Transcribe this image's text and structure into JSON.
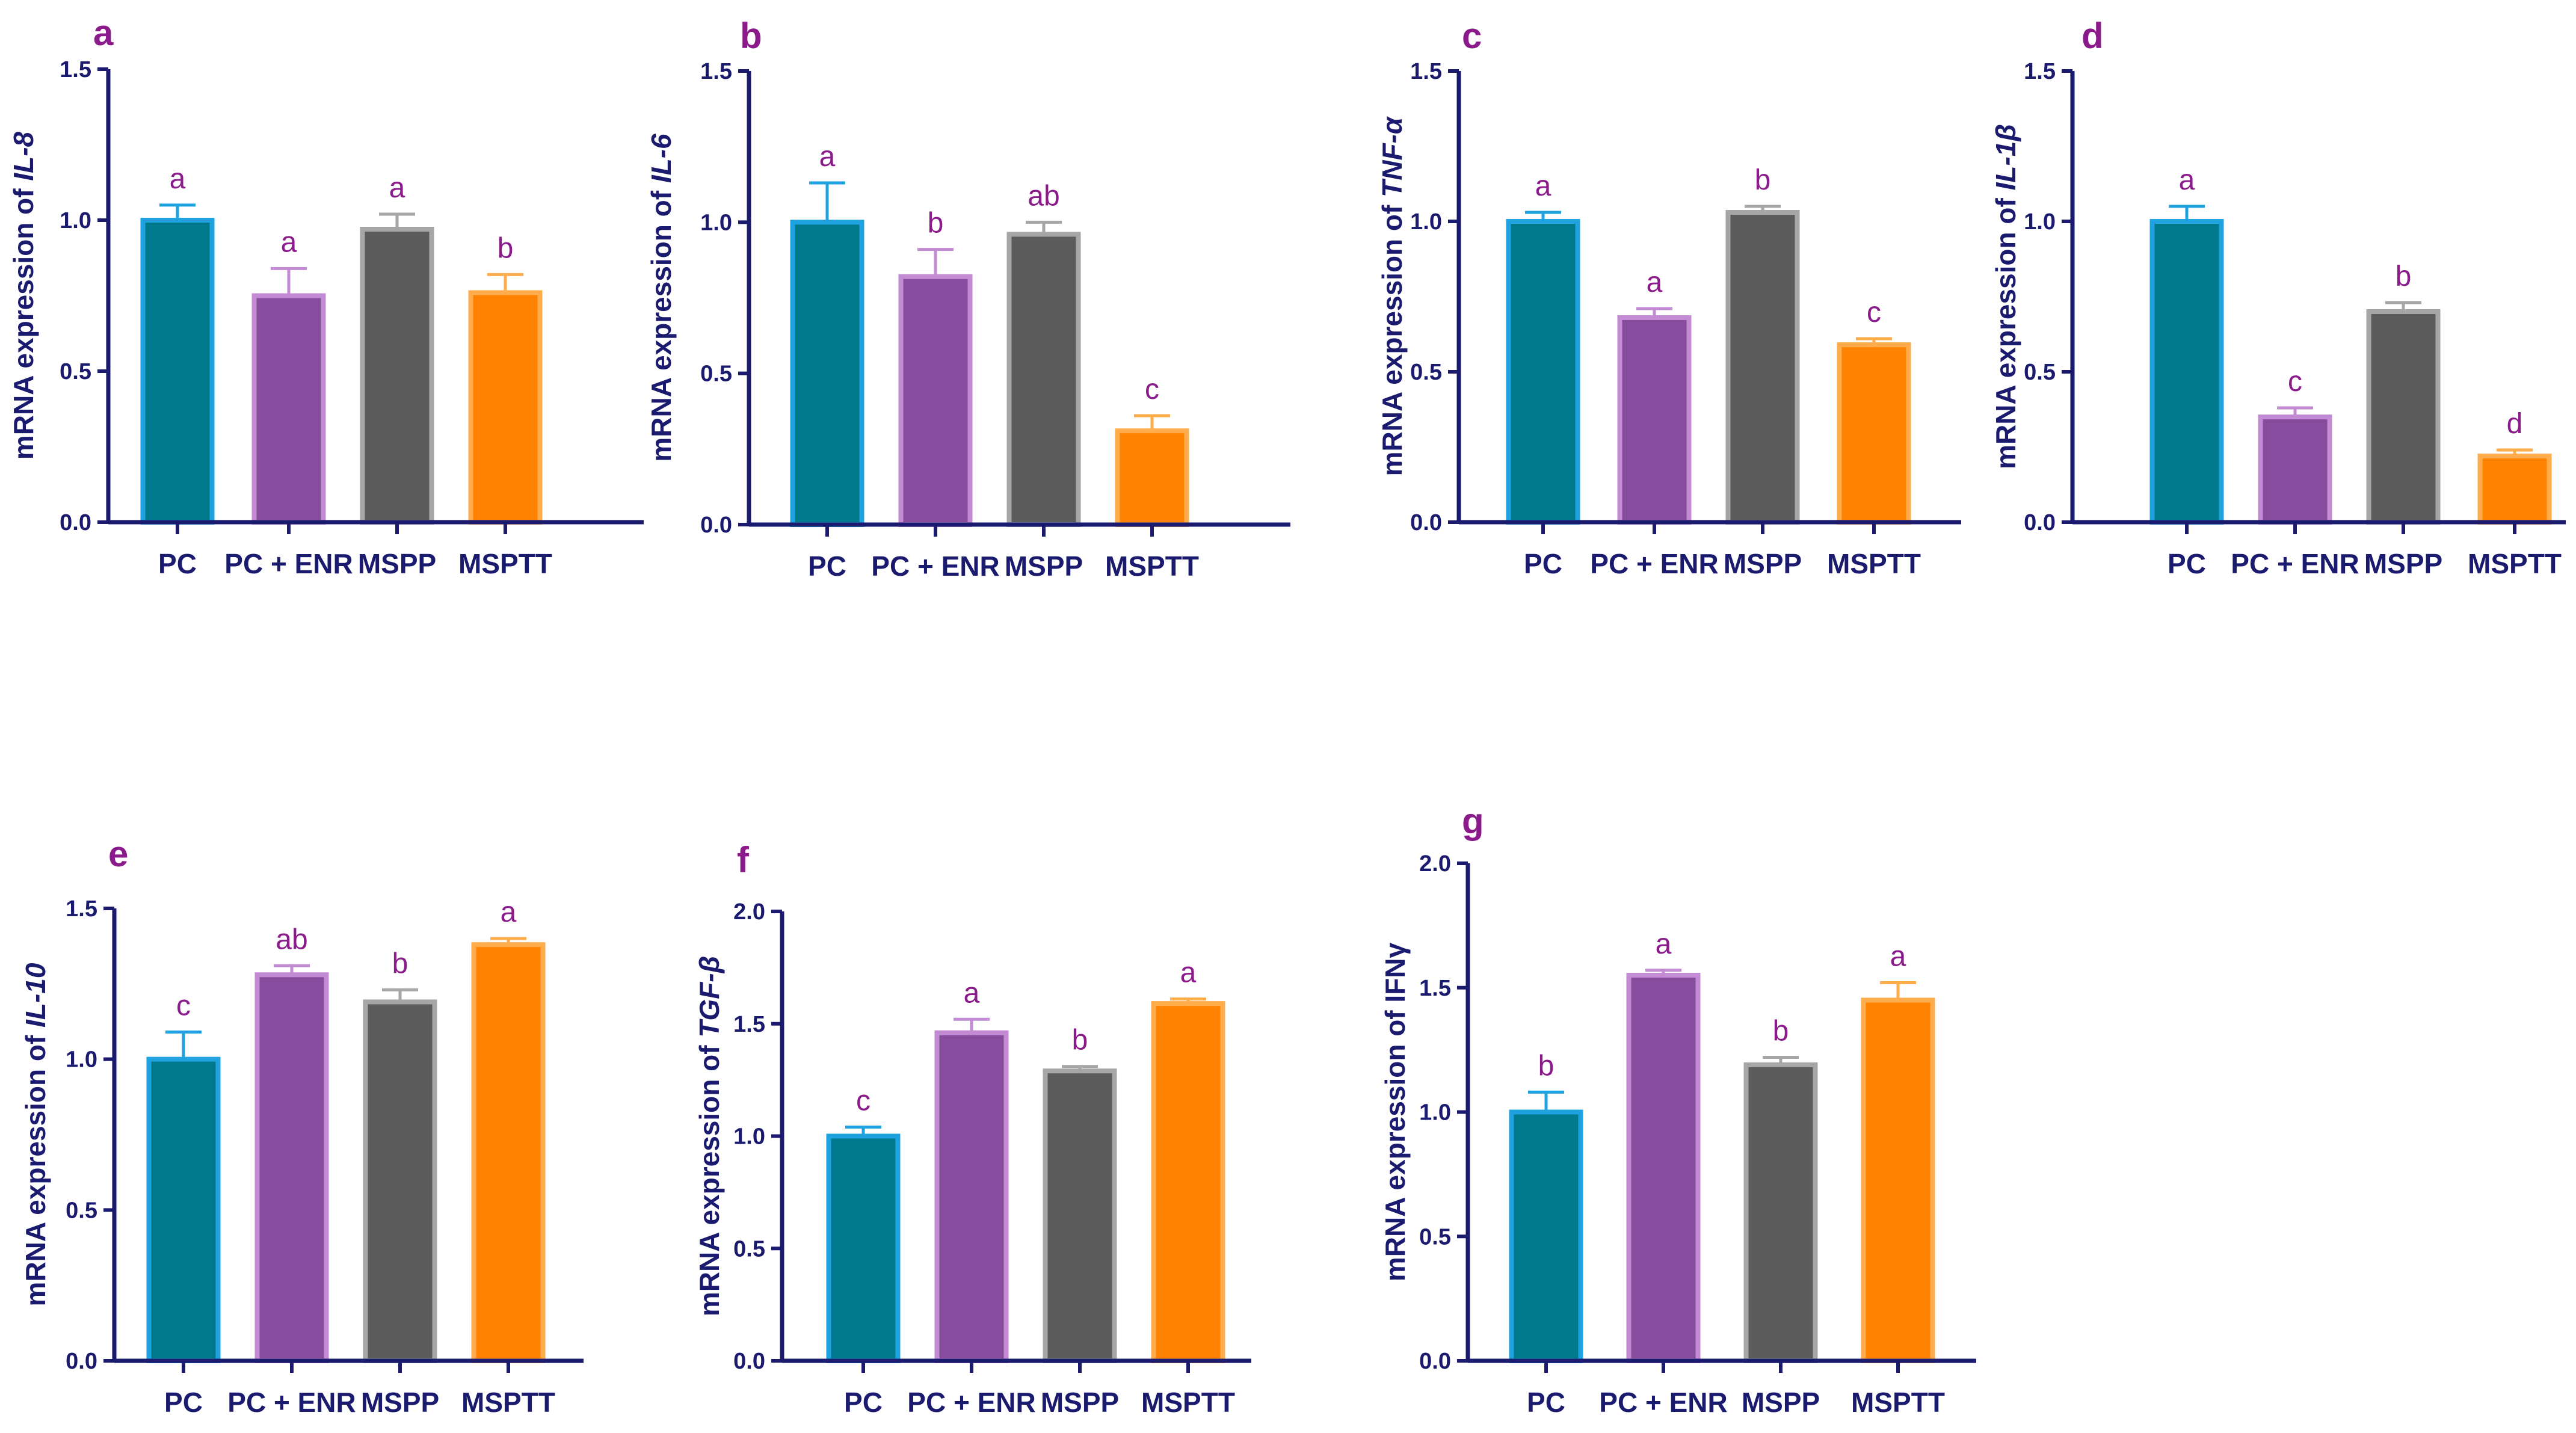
{
  "colors": {
    "PC": {
      "fill": "#00798c",
      "stroke": "#1ea3e0"
    },
    "PC + ENR": {
      "fill": "#874c9e",
      "stroke": "#c28bd3"
    },
    "MSPP": {
      "fill": "#5c5c5c",
      "stroke": "#a6a6a6"
    },
    "MSPTT": {
      "fill": "#ff8200",
      "stroke": "#ffac4d"
    },
    "axis": "#1a1a6e",
    "letter": "#8b1a8b"
  },
  "chart_data": [
    {
      "panel": "a",
      "type": "bar",
      "title": "",
      "ylabel_prefix": "mRNA expression of ",
      "ylabel_gene": "IL-8",
      "gene_italic": true,
      "categories": [
        "PC",
        "PC + ENR",
        "MSPP",
        "MSPTT"
      ],
      "values": [
        1.0,
        0.75,
        0.97,
        0.76
      ],
      "errors": [
        0.05,
        0.09,
        0.05,
        0.06
      ],
      "sig": [
        "a",
        "a",
        "a",
        "b"
      ],
      "ylim": [
        0,
        1.5
      ],
      "yticks": [
        "0.0",
        "0.5",
        "1.0",
        "1.5"
      ]
    },
    {
      "panel": "b",
      "type": "bar",
      "title": "",
      "ylabel_prefix": "mRNA expression of ",
      "ylabel_gene": "IL-6",
      "gene_italic": true,
      "categories": [
        "PC",
        "PC + ENR",
        "MSPP",
        "MSPTT"
      ],
      "values": [
        1.0,
        0.82,
        0.96,
        0.31
      ],
      "errors": [
        0.13,
        0.09,
        0.04,
        0.05
      ],
      "sig": [
        "a",
        "b",
        "ab",
        "c"
      ],
      "ylim": [
        0,
        1.5
      ],
      "yticks": [
        "0.0",
        "0.5",
        "1.0",
        "1.5"
      ]
    },
    {
      "panel": "c",
      "type": "bar",
      "title": "",
      "ylabel_prefix": "mRNA expression of ",
      "ylabel_gene": "TNF-α",
      "gene_italic": true,
      "categories": [
        "PC",
        "PC + ENR",
        "MSPP",
        "MSPTT"
      ],
      "values": [
        1.0,
        0.68,
        1.03,
        0.59
      ],
      "errors": [
        0.03,
        0.03,
        0.02,
        0.02
      ],
      "sig": [
        "a",
        "a",
        "b",
        "c"
      ],
      "ylim": [
        0,
        1.5
      ],
      "yticks": [
        "0.0",
        "0.5",
        "1.0",
        "1.5"
      ]
    },
    {
      "panel": "d",
      "type": "bar",
      "title": "",
      "ylabel_prefix": "mRNA expression of ",
      "ylabel_gene": "IL-1β",
      "gene_italic": true,
      "categories": [
        "PC",
        "PC + ENR",
        "MSPP",
        "MSPTT"
      ],
      "values": [
        1.0,
        0.35,
        0.7,
        0.22
      ],
      "errors": [
        0.05,
        0.03,
        0.03,
        0.02
      ],
      "sig": [
        "a",
        "c",
        "b",
        "d"
      ],
      "ylim": [
        0,
        1.5
      ],
      "yticks": [
        "0.0",
        "0.5",
        "1.0",
        "1.5"
      ]
    },
    {
      "panel": "e",
      "type": "bar",
      "title": "",
      "ylabel_prefix": "mRNA expression of ",
      "ylabel_gene": "IL-10",
      "gene_italic": true,
      "categories": [
        "PC",
        "PC + ENR",
        "MSPP",
        "MSPTT"
      ],
      "values": [
        1.0,
        1.28,
        1.19,
        1.38
      ],
      "errors": [
        0.09,
        0.03,
        0.04,
        0.02
      ],
      "sig": [
        "c",
        "ab",
        "b",
        "a"
      ],
      "ylim": [
        0,
        1.5
      ],
      "yticks": [
        "0.0",
        "0.5",
        "1.0",
        "1.5"
      ]
    },
    {
      "panel": "f",
      "type": "bar",
      "title": "",
      "ylabel_prefix": "mRNA expression of ",
      "ylabel_gene": "TGF-β",
      "gene_italic": true,
      "categories": [
        "PC",
        "PC + ENR",
        "MSPP",
        "MSPTT"
      ],
      "values": [
        1.0,
        1.46,
        1.29,
        1.59
      ],
      "errors": [
        0.04,
        0.06,
        0.02,
        0.02
      ],
      "sig": [
        "c",
        "a",
        "b",
        "a"
      ],
      "ylim": [
        0,
        2.0
      ],
      "yticks": [
        "0.0",
        "0.5",
        "1.0",
        "1.5",
        "2.0"
      ]
    },
    {
      "panel": "g",
      "type": "bar",
      "title": "",
      "ylabel_prefix": "mRNA expression of ",
      "ylabel_gene": "IFNγ",
      "gene_italic": false,
      "categories": [
        "PC",
        "PC + ENR",
        "MSPP",
        "MSPTT"
      ],
      "values": [
        1.0,
        1.55,
        1.19,
        1.45
      ],
      "errors": [
        0.08,
        0.02,
        0.03,
        0.07
      ],
      "sig": [
        "b",
        "a",
        "b",
        "a"
      ],
      "ylim": [
        0,
        2.0
      ],
      "yticks": [
        "0.0",
        "0.5",
        "1.0",
        "1.5",
        "2.0"
      ]
    }
  ]
}
